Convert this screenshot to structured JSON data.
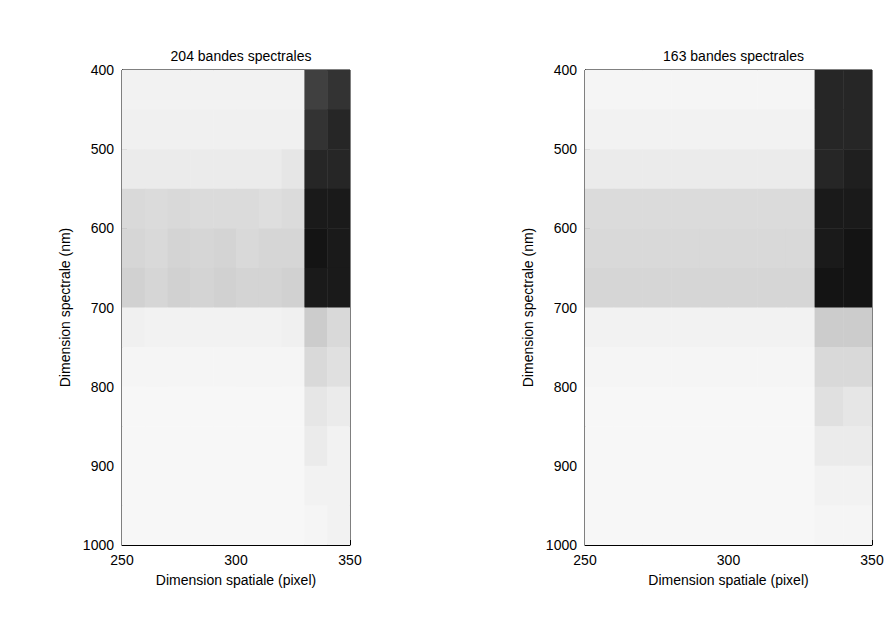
{
  "chart_data": [
    {
      "type": "heatmap",
      "title": "204 bandes spectrales",
      "x_label": "Dimension spatiale (pixel)",
      "y_label": "Dimension spectrale (nm)",
      "xlim": [
        250,
        350
      ],
      "xticks": [
        250,
        300,
        350
      ],
      "ylim": [
        400,
        1000
      ],
      "yticks": [
        400,
        500,
        600,
        700,
        800,
        900,
        1000
      ],
      "x": [
        255,
        265,
        275,
        285,
        295,
        305,
        315,
        325,
        335,
        345
      ],
      "y": [
        425,
        475,
        525,
        575,
        625,
        675,
        725,
        775,
        825,
        875,
        925,
        975
      ],
      "zlim": [
        0,
        1
      ],
      "cells": [
        [
          0.05,
          0.05,
          0.05,
          0.05,
          0.05,
          0.05,
          0.05,
          0.05,
          0.75,
          0.8
        ],
        [
          0.06,
          0.06,
          0.06,
          0.06,
          0.06,
          0.06,
          0.06,
          0.06,
          0.8,
          0.85
        ],
        [
          0.08,
          0.08,
          0.08,
          0.08,
          0.08,
          0.08,
          0.08,
          0.1,
          0.85,
          0.85
        ],
        [
          0.15,
          0.14,
          0.15,
          0.14,
          0.14,
          0.14,
          0.13,
          0.14,
          0.9,
          0.9
        ],
        [
          0.16,
          0.15,
          0.17,
          0.16,
          0.17,
          0.15,
          0.16,
          0.16,
          0.92,
          0.9
        ],
        [
          0.18,
          0.16,
          0.18,
          0.17,
          0.18,
          0.17,
          0.17,
          0.18,
          0.9,
          0.9
        ],
        [
          0.06,
          0.05,
          0.05,
          0.05,
          0.05,
          0.05,
          0.05,
          0.06,
          0.2,
          0.15
        ],
        [
          0.04,
          0.04,
          0.04,
          0.04,
          0.04,
          0.04,
          0.04,
          0.04,
          0.15,
          0.12
        ],
        [
          0.03,
          0.03,
          0.03,
          0.03,
          0.03,
          0.03,
          0.03,
          0.03,
          0.1,
          0.08
        ],
        [
          0.03,
          0.03,
          0.03,
          0.03,
          0.03,
          0.03,
          0.03,
          0.03,
          0.08,
          0.05
        ],
        [
          0.03,
          0.03,
          0.03,
          0.03,
          0.03,
          0.03,
          0.03,
          0.03,
          0.05,
          0.05
        ],
        [
          0.03,
          0.03,
          0.03,
          0.03,
          0.03,
          0.03,
          0.03,
          0.03,
          0.04,
          0.05
        ]
      ]
    },
    {
      "type": "heatmap",
      "title": "163 bandes spectrales",
      "x_label": "Dimension spatiale (pixel)",
      "y_label": "Dimension spectrale (nm)",
      "xlim": [
        250,
        350
      ],
      "xticks": [
        250,
        300,
        350
      ],
      "ylim": [
        400,
        1000
      ],
      "yticks": [
        400,
        500,
        600,
        700,
        800,
        900,
        1000
      ],
      "x": [
        255,
        265,
        275,
        285,
        295,
        305,
        315,
        325,
        335,
        345
      ],
      "y": [
        425,
        475,
        525,
        575,
        625,
        675,
        725,
        775,
        825,
        875,
        925,
        975
      ],
      "zlim": [
        0,
        1
      ],
      "cells": [
        [
          0.04,
          0.04,
          0.04,
          0.04,
          0.04,
          0.04,
          0.04,
          0.04,
          0.85,
          0.85
        ],
        [
          0.05,
          0.05,
          0.05,
          0.05,
          0.05,
          0.05,
          0.05,
          0.05,
          0.85,
          0.85
        ],
        [
          0.08,
          0.08,
          0.08,
          0.08,
          0.08,
          0.08,
          0.08,
          0.08,
          0.85,
          0.88
        ],
        [
          0.14,
          0.14,
          0.14,
          0.14,
          0.14,
          0.14,
          0.14,
          0.14,
          0.9,
          0.9
        ],
        [
          0.15,
          0.15,
          0.15,
          0.15,
          0.15,
          0.15,
          0.15,
          0.15,
          0.9,
          0.92
        ],
        [
          0.16,
          0.16,
          0.16,
          0.16,
          0.16,
          0.16,
          0.16,
          0.16,
          0.92,
          0.92
        ],
        [
          0.05,
          0.05,
          0.05,
          0.05,
          0.05,
          0.05,
          0.05,
          0.05,
          0.2,
          0.2
        ],
        [
          0.04,
          0.04,
          0.04,
          0.04,
          0.04,
          0.04,
          0.04,
          0.04,
          0.15,
          0.15
        ],
        [
          0.03,
          0.03,
          0.03,
          0.03,
          0.03,
          0.03,
          0.03,
          0.03,
          0.12,
          0.1
        ],
        [
          0.03,
          0.03,
          0.03,
          0.03,
          0.03,
          0.03,
          0.03,
          0.03,
          0.08,
          0.08
        ],
        [
          0.03,
          0.03,
          0.03,
          0.03,
          0.03,
          0.03,
          0.03,
          0.03,
          0.05,
          0.05
        ],
        [
          0.03,
          0.03,
          0.03,
          0.03,
          0.03,
          0.03,
          0.03,
          0.03,
          0.04,
          0.04
        ]
      ]
    }
  ]
}
